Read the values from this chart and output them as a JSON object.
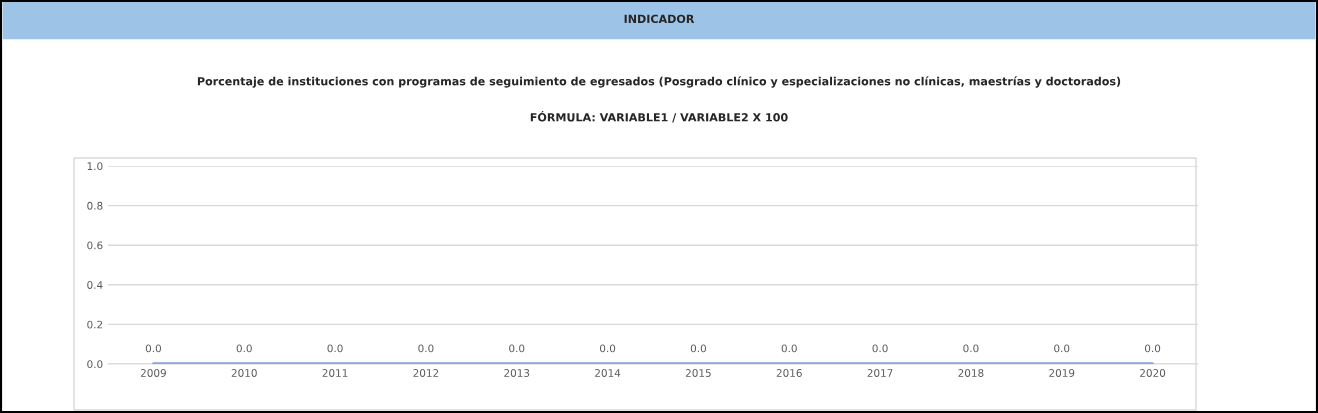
{
  "chart_data": {
    "type": "line",
    "title": "INDICADOR",
    "subtitle": "Porcentaje de instituciones con programas de seguimiento de egresados (Posgrado clínico y especializaciones no clínicas, maestrías y doctorados)",
    "annotations": [
      "FÓRMULA: VARIABLE1 / VARIABLE2 X 100"
    ],
    "categories": [
      "2009",
      "2010",
      "2011",
      "2012",
      "2013",
      "2014",
      "2015",
      "2016",
      "2017",
      "2018",
      "2019",
      "2020"
    ],
    "series": [
      {
        "color": "#4472c4",
        "values": [
          0,
          0,
          0,
          0,
          0,
          0,
          0,
          0,
          0,
          0,
          0,
          0
        ],
        "value_labels": [
          "0.0",
          "0.0",
          "0.0",
          "0.0",
          "0.0",
          "0.0",
          "0.0",
          "0.0",
          "0.0",
          "0.0",
          "0.0",
          "0.0"
        ]
      }
    ],
    "ylim": [
      0,
      1.0
    ],
    "yticks": [
      {
        "value": 0,
        "label": "0.0"
      },
      {
        "value": 0.2,
        "label": "0.2"
      },
      {
        "value": 0.4,
        "label": "0.4"
      },
      {
        "value": 0.6,
        "label": "0.6"
      },
      {
        "value": 0.8,
        "label": "0.8"
      },
      {
        "value": 1.0,
        "label": "1.0"
      }
    ],
    "grid": "y",
    "legend": false,
    "marker": "none",
    "line_style": "solid"
  }
}
